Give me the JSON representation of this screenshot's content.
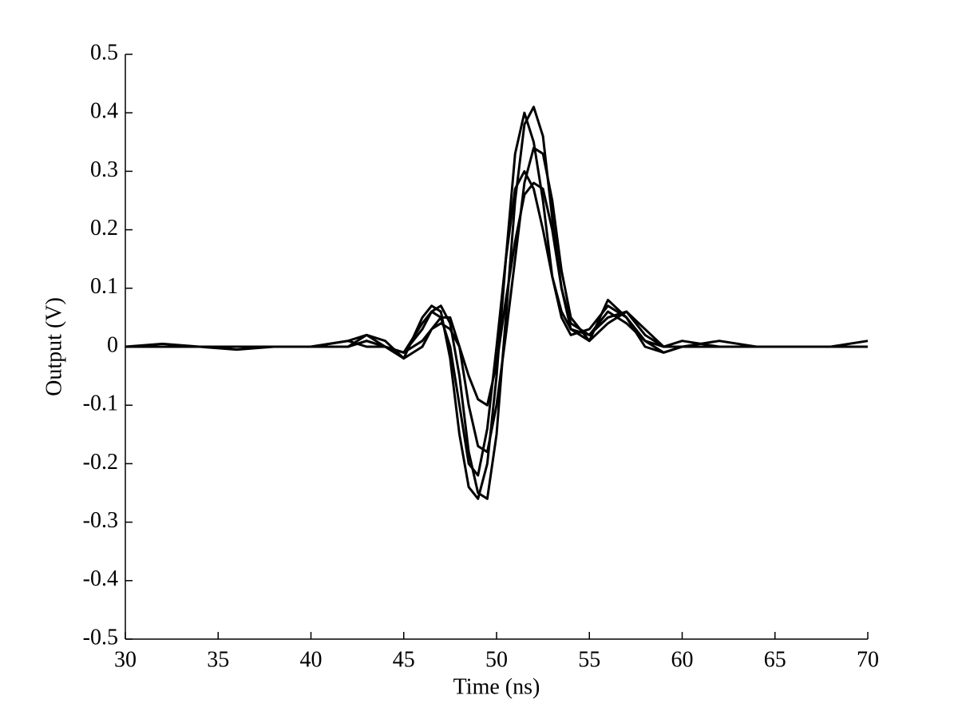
{
  "chart_data": {
    "type": "line",
    "x_label": "Time (ns)",
    "y_label": "Output (V)",
    "x": [
      30,
      32,
      34,
      36,
      38,
      40,
      42,
      43,
      44,
      45,
      46,
      46.5,
      47,
      47.5,
      48,
      48.5,
      49,
      49.5,
      50,
      50.5,
      51,
      51.5,
      52,
      52.5,
      53,
      53.5,
      54,
      55,
      56,
      57,
      58,
      59,
      60,
      62,
      64,
      66,
      68,
      70
    ],
    "series": [
      {
        "color": "#000000",
        "values": [
          0,
          0,
          0,
          0,
          0,
          0,
          0,
          0.01,
          0,
          -0.01,
          0.03,
          0.06,
          0.07,
          0.04,
          -0.05,
          -0.18,
          -0.25,
          -0.26,
          -0.15,
          0.05,
          0.25,
          0.38,
          0.41,
          0.36,
          0.22,
          0.1,
          0.03,
          0.01,
          0.08,
          0.05,
          0,
          -0.01,
          0,
          0,
          0,
          0,
          0,
          0
        ]
      },
      {
        "color": "#000000",
        "values": [
          0,
          0,
          0,
          0,
          0,
          0,
          0.01,
          0.02,
          0,
          -0.02,
          0.05,
          0.07,
          0.06,
          -0.02,
          -0.15,
          -0.24,
          -0.26,
          -0.2,
          -0.05,
          0.15,
          0.33,
          0.4,
          0.35,
          0.25,
          0.12,
          0.05,
          0.02,
          0.03,
          0.07,
          0.05,
          0.01,
          0,
          0,
          0,
          0,
          0,
          0,
          0
        ]
      },
      {
        "color": "#000000",
        "values": [
          0,
          0,
          0,
          0,
          0,
          0,
          0,
          0.01,
          0,
          -0.01,
          0.01,
          0.03,
          0.04,
          0.03,
          0,
          -0.05,
          -0.09,
          -0.1,
          -0.03,
          0.08,
          0.18,
          0.26,
          0.28,
          0.27,
          0.2,
          0.1,
          0.04,
          0.02,
          0.05,
          0.06,
          0.02,
          0,
          0.01,
          0,
          0,
          0,
          0,
          0
        ]
      },
      {
        "color": "#000000",
        "values": [
          0,
          0.005,
          0,
          -0.005,
          0,
          0,
          0,
          0.02,
          0.01,
          -0.02,
          0,
          0.03,
          0.05,
          0.05,
          0,
          -0.1,
          -0.17,
          -0.18,
          -0.1,
          0.02,
          0.15,
          0.28,
          0.34,
          0.33,
          0.25,
          0.13,
          0.05,
          0.01,
          0.04,
          0.06,
          0.03,
          0,
          0,
          0.01,
          0,
          0,
          0,
          0.01
        ]
      },
      {
        "color": "#000000",
        "values": [
          0,
          0,
          0,
          0,
          0,
          0,
          0.01,
          0,
          0,
          -0.01,
          0.04,
          0.06,
          0.05,
          0,
          -0.1,
          -0.2,
          -0.22,
          -0.14,
          0,
          0.15,
          0.27,
          0.3,
          0.27,
          0.2,
          0.12,
          0.06,
          0.03,
          0.02,
          0.06,
          0.04,
          0.01,
          -0.01,
          0,
          0,
          0,
          0,
          0,
          0
        ]
      }
    ],
    "xlim": [
      30,
      70
    ],
    "xticks": [
      30,
      35,
      40,
      45,
      50,
      55,
      60,
      65,
      70
    ],
    "ylim": [
      -0.5,
      0.5
    ],
    "yticks": [
      -0.5,
      -0.4,
      -0.3,
      -0.2,
      -0.1,
      0,
      0.1,
      0.2,
      0.3,
      0.4,
      0.5
    ],
    "grid": false
  }
}
